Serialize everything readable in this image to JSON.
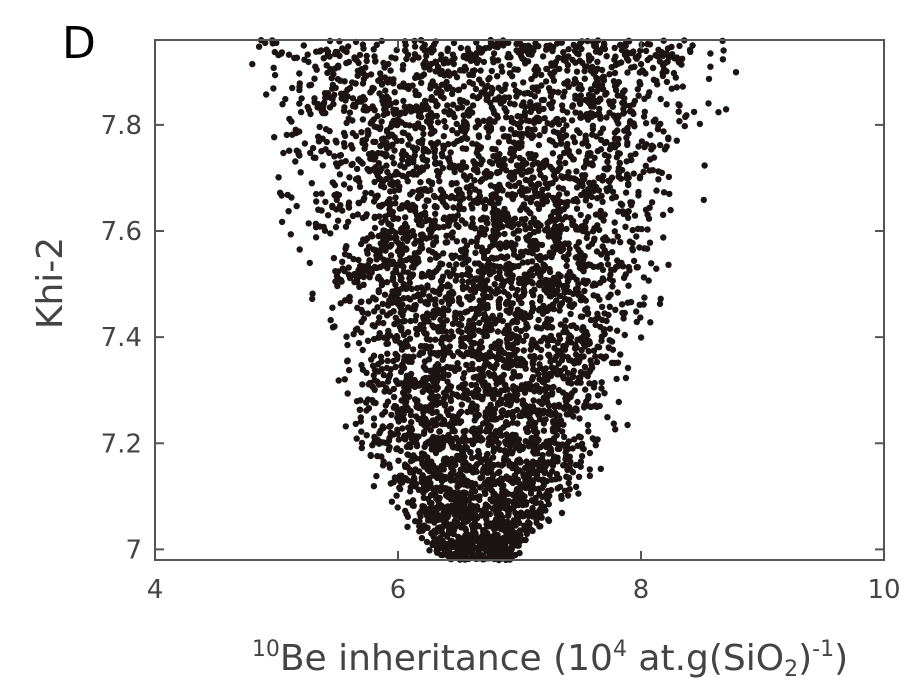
{
  "panel_label": "D",
  "chart_data": {
    "type": "scatter",
    "title": "",
    "xlabel": {
      "main": "Be inheritance (10",
      "sup_prefix": "10",
      "sup_exp": "4",
      "mid": " at.g(SiO",
      "sub": "2",
      "close": ")",
      "sup_end": "-1",
      "end": ")"
    },
    "ylabel": "Khi-2",
    "xlim": [
      4,
      10
    ],
    "ylim": [
      6.98,
      7.96
    ],
    "xticks": [
      4,
      6,
      8,
      10
    ],
    "xtick_labels": [
      "4",
      "6",
      "8",
      "10"
    ],
    "yticks": [
      7,
      7.2,
      7.4,
      7.6,
      7.8
    ],
    "ytick_labels": [
      "7",
      "7.2",
      "7.4",
      "7.6",
      "7.8"
    ],
    "grid": false,
    "legend": "none",
    "marker_color": "#1c1414",
    "point_cloud": {
      "description_shape": "V-shaped envelope",
      "min_point": {
        "x": 6.7,
        "y": 6.98
      },
      "envelope": [
        {
          "y": 6.98,
          "x_min": 6.3,
          "x_max": 7.0
        },
        {
          "y": 7.1,
          "x_min": 5.8,
          "x_max": 7.6
        },
        {
          "y": 7.2,
          "x_min": 5.5,
          "x_max": 7.9
        },
        {
          "y": 7.4,
          "x_min": 5.2,
          "x_max": 8.2
        },
        {
          "y": 7.6,
          "x_min": 4.9,
          "x_max": 8.5
        },
        {
          "y": 7.8,
          "x_min": 4.6,
          "x_max": 8.8
        },
        {
          "y": 7.96,
          "x_min": 4.45,
          "x_max": 9.05
        }
      ]
    }
  }
}
